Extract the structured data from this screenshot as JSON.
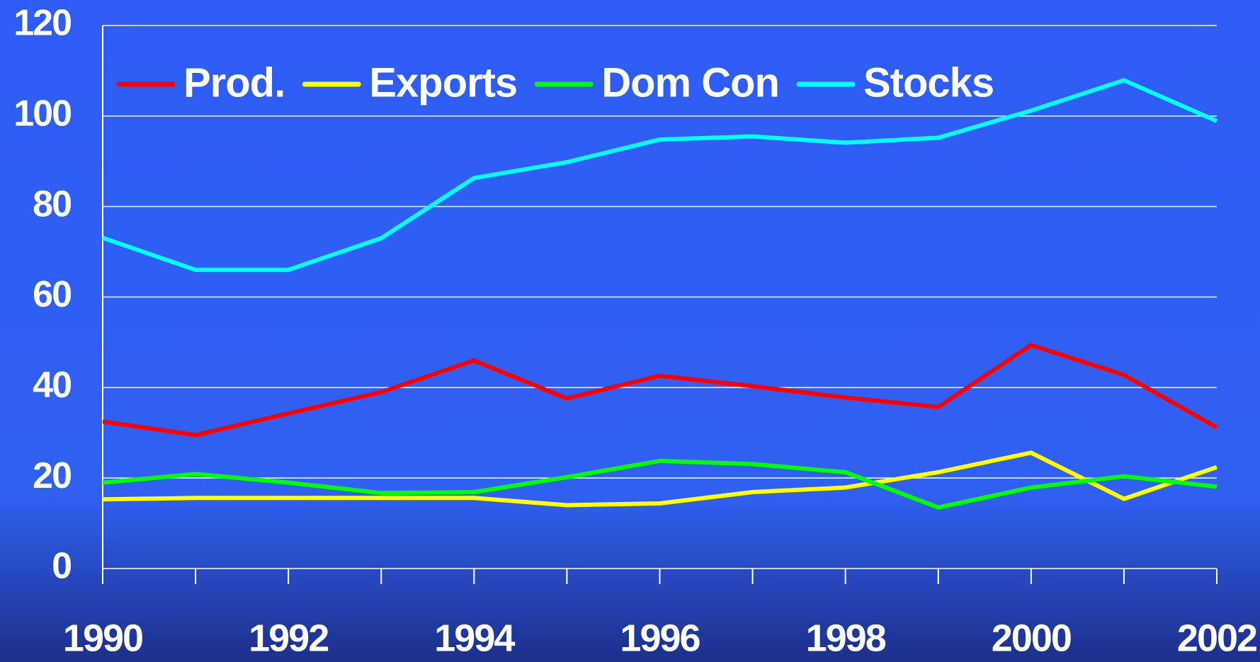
{
  "chart_data": {
    "type": "line",
    "x": [
      1990,
      1991,
      1992,
      1993,
      1994,
      1995,
      1996,
      1997,
      1998,
      1999,
      2000,
      2001,
      2002
    ],
    "series": [
      {
        "name": "Prod.",
        "color": "#ff0000",
        "values": [
          32.5,
          29.5,
          34.3,
          39,
          46,
          37.6,
          42.6,
          40.3,
          37.8,
          35.7,
          49.4,
          42.8,
          31.2
        ]
      },
      {
        "name": "Exports",
        "color": "#ffff00",
        "values": [
          15.3,
          15.6,
          15.6,
          15.6,
          15.6,
          14,
          14.4,
          16.9,
          17.9,
          21.3,
          25.6,
          15.4,
          22.4
        ]
      },
      {
        "name": "Dom Con",
        "color": "#00ff00",
        "values": [
          19,
          20.9,
          19,
          16.7,
          16.9,
          20.2,
          23.8,
          23.1,
          21.3,
          13.5,
          17.9,
          20.4,
          18.1
        ]
      },
      {
        "name": "Stocks",
        "color": "#00ffff",
        "values": [
          73.1,
          66,
          66,
          73,
          86.3,
          89.8,
          94.8,
          95.5,
          94.1,
          95.2,
          101.2,
          107.9,
          98.9
        ]
      }
    ],
    "xlim": [
      1990,
      2002
    ],
    "xticks": [
      1990,
      1992,
      1994,
      1996,
      1998,
      2000,
      2002
    ],
    "ylim": [
      0,
      120
    ],
    "yticks": [
      0,
      20,
      40,
      60,
      80,
      100,
      120
    ],
    "grid": true,
    "legend": "top"
  }
}
